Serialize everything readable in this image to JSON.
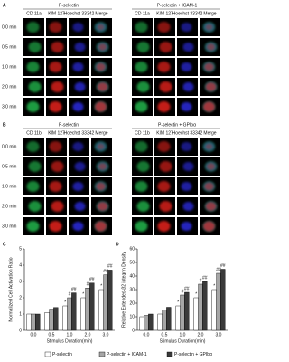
{
  "figure": {
    "panels": [
      {
        "label": "A",
        "groups": [
          "P-selectin",
          "P-selectin + ICAM-1"
        ],
        "channels": [
          "CD 11a",
          "KIM 127",
          "Hoechst 33342",
          "Merge"
        ],
        "rows": [
          "0.0 min",
          "0.5 min",
          "1.0 min",
          "2.0 min",
          "3.0 min"
        ]
      },
      {
        "label": "B",
        "groups": [
          "P-selectin",
          "P-selectin + GPIbα"
        ],
        "channels": [
          "CD 11b",
          "KIM 127",
          "Hoechst 33342",
          "Merge"
        ],
        "rows": [
          "0.0 min",
          "0.5 min",
          "1.0 min",
          "2.0 min",
          "3.0 min"
        ]
      }
    ],
    "channel_colors": [
      "#22b14c",
      "#e0201c",
      "#2a2ad8",
      "#000000"
    ],
    "chart_labels": [
      "C",
      "D"
    ]
  },
  "chart_data": [
    {
      "type": "bar",
      "y_label": "Normalized Cell Activation Ratio",
      "x_label": "Stimulus Duration(min)",
      "categories": [
        "0.0",
        "0.5",
        "1.0",
        "2.0",
        "3.0"
      ],
      "series": [
        {
          "name": "P-selectin",
          "color": "#ffffff",
          "values": [
            1.0,
            1.1,
            1.5,
            2.0,
            2.5
          ],
          "annotations": [
            null,
            null,
            "*",
            "*",
            "*"
          ]
        },
        {
          "name": "P-selectin + ICAM-1",
          "color": "#a6a6a6",
          "values": [
            1.0,
            1.3,
            2.0,
            2.6,
            3.4
          ],
          "annotations": [
            null,
            null,
            "#",
            "#",
            "##"
          ]
        },
        {
          "name": "P-selectin + GPIbα",
          "color": "#3a3a3a",
          "values": [
            1.0,
            1.4,
            2.3,
            2.9,
            3.7
          ],
          "annotations": [
            null,
            null,
            "##",
            "##",
            "##"
          ]
        }
      ],
      "ylim": [
        0,
        5
      ],
      "yticks": [
        0,
        1,
        2,
        3,
        4,
        5
      ]
    },
    {
      "type": "bar",
      "y_label": "Relative Extended-β2 integrin Density",
      "x_label": "Stimulus Duration(min)",
      "categories": [
        "0.0",
        "0.5",
        "1.0",
        "2.0",
        "3.0"
      ],
      "series": [
        {
          "color": "#ffffff",
          "values": [
            10,
            12,
            18,
            24,
            30
          ],
          "annotations": [
            null,
            null,
            "*",
            "*",
            "*"
          ]
        },
        {
          "color": "#a6a6a6",
          "values": [
            11,
            15,
            26,
            34,
            42
          ],
          "annotations": [
            null,
            null,
            "#",
            "#",
            "##"
          ]
        },
        {
          "color": "#3a3a3a",
          "values": [
            12,
            17,
            28,
            36,
            45
          ],
          "annotations": [
            null,
            null,
            "##",
            "##",
            "##"
          ]
        }
      ],
      "ylim": [
        0,
        60
      ],
      "yticks": [
        0,
        10,
        20,
        30,
        40,
        50,
        60
      ]
    }
  ]
}
